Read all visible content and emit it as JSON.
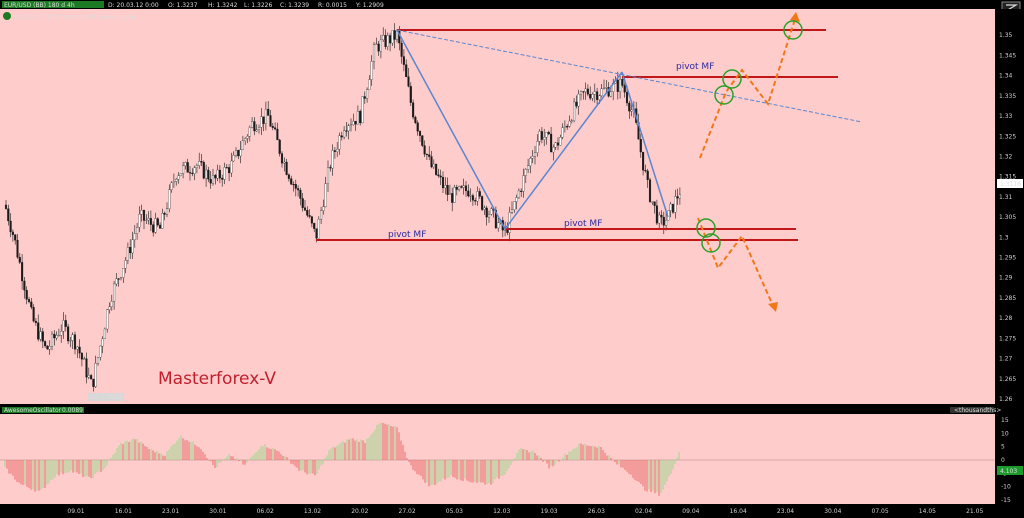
{
  "header": {
    "symbol_badge": "EUR/USD (BB) 180 d 4h",
    "date": "D: 20.03.12 0:00",
    "open": "O: 1.3237",
    "high": "H: 1.3242",
    "low": "L: 1.3226",
    "close": "C: 1.3239",
    "range": "R: 0.0015",
    "y_value": "Y: 1.2909",
    "copyright": "©2012 © TD Ameritrade IP Company, Inc."
  },
  "watermark": "Masterforex-V",
  "low_label": "Lo: 1.2623",
  "last_price_label": "1.3116",
  "oscillator": {
    "name_label": "AwesomeOscillator",
    "value_label": "0.0089",
    "right_label": "<thousandths>",
    "last_value_label": "4.103",
    "ticks": [
      "15",
      "10",
      "5",
      "0",
      "-5",
      "-10",
      "-15"
    ]
  },
  "pivots": [
    {
      "label": "pivot MF",
      "price": 1.3365
    },
    {
      "label": "pivot MF",
      "price": 1.3
    },
    {
      "label": "pivot MF",
      "price": 1.2975
    }
  ],
  "colors": {
    "background": "#ffcccc",
    "bull_histogram": "#9bd88b",
    "bear_histogram": "#e86a6a",
    "pivot_line": "#c01818",
    "trend_line": "#5b86cf",
    "projection_arrow": "#f07818",
    "target_circle": "#2aa02a"
  },
  "chart_data": [
    {
      "type": "line",
      "subtype": "candlestick",
      "title": "",
      "xlabel": "",
      "ylabel": "",
      "ylim": [
        1.26,
        1.355
      ],
      "y_ticks": [
        "1.35",
        "1.345",
        "1.34",
        "1.335",
        "1.33",
        "1.325",
        "1.32",
        "1.315",
        "1.31",
        "1.305",
        "1.3",
        "1.295",
        "1.29",
        "1.285",
        "1.28",
        "1.275",
        "1.27",
        "1.265",
        "1.26"
      ],
      "x_ticks": [
        "09.01",
        "16.01",
        "23.01",
        "30.01",
        "06.02",
        "13.02",
        "20.02",
        "27.02",
        "05.03",
        "12.03",
        "19.03",
        "26.03",
        "02.04",
        "09.04",
        "16.04",
        "23.04",
        "30.04",
        "07.05",
        "14.05",
        "21.05"
      ],
      "series": [
        {
          "x": [
            "09.01",
            "16.01",
            "23.01",
            "30.01",
            "06.02",
            "13.02",
            "20.02",
            "27.02",
            "05.03",
            "12.03",
            "19.03",
            "26.03",
            "02.04",
            "05.04"
          ],
          "values": [
            1.278,
            1.263,
            1.31,
            1.316,
            1.32,
            1.3,
            1.35,
            1.32,
            1.315,
            1.3,
            1.326,
            1.336,
            1.303,
            1.3116
          ]
        }
      ],
      "grid": false,
      "legend": "none"
    },
    {
      "type": "bar",
      "subtype": "histogram",
      "title": "",
      "xlabel": "",
      "ylabel": "",
      "ylim": [
        -15,
        15
      ],
      "series": [
        {
          "x": [
            "09.01",
            "16.01",
            "23.01",
            "30.01",
            "06.02",
            "13.02",
            "20.02",
            "27.02",
            "05.03",
            "12.03",
            "19.03",
            "26.03",
            "02.04",
            "05.04"
          ],
          "values": [
            -8,
            -5,
            6,
            7,
            4,
            -2,
            12,
            -4,
            -5,
            -3,
            4,
            5,
            -7,
            4.1
          ]
        }
      ],
      "grid": false,
      "legend": "none"
    }
  ]
}
